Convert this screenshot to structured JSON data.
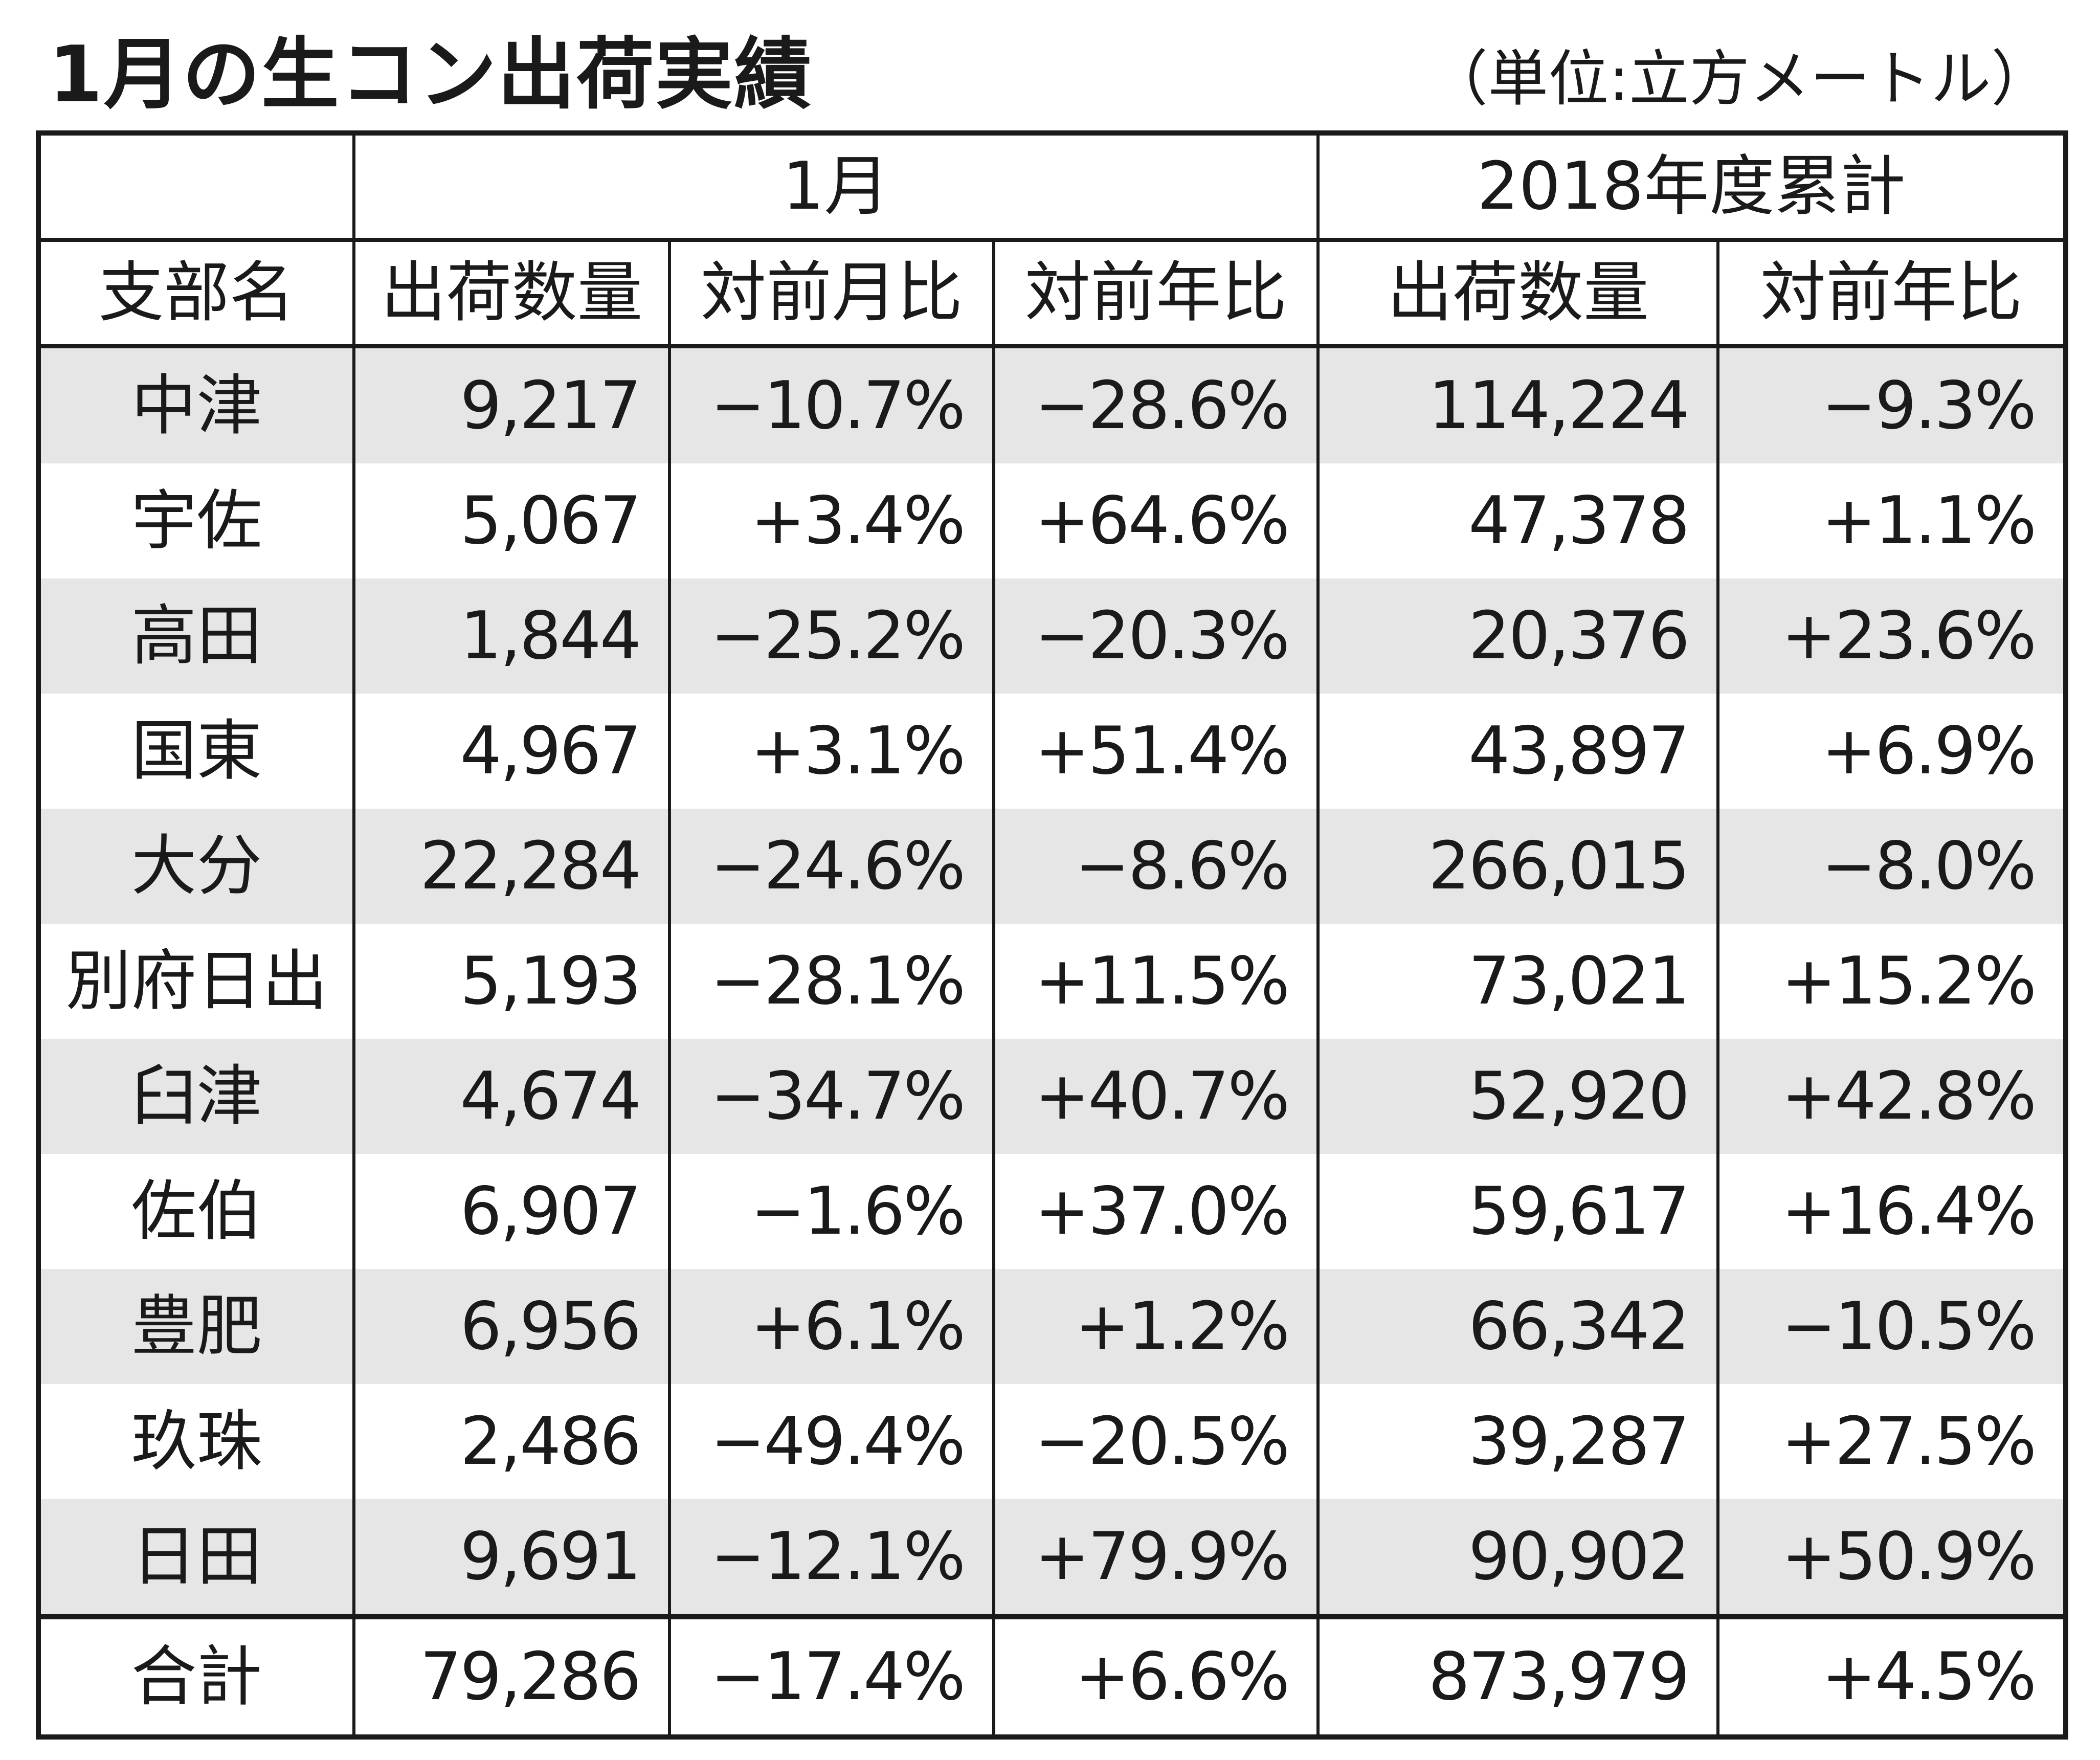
{
  "title": "1月の生コン出荷実績",
  "unit": "（単位:立方メートル）",
  "table": {
    "group_headers": [
      "",
      "1月",
      "2018年度累計"
    ],
    "column_headers": [
      "支部名",
      "出荷数量",
      "対前月比",
      "対前年比",
      "出荷数量",
      "対前年比"
    ],
    "rows": [
      [
        "中津",
        "9,217",
        "−10.7%",
        "−28.6%",
        "114,224",
        "−9.3%"
      ],
      [
        "宇佐",
        "5,067",
        "+3.4%",
        "+64.6%",
        "47,378",
        "+1.1%"
      ],
      [
        "高田",
        "1,844",
        "−25.2%",
        "−20.3%",
        "20,376",
        "+23.6%"
      ],
      [
        "国東",
        "4,967",
        "+3.1%",
        "+51.4%",
        "43,897",
        "+6.9%"
      ],
      [
        "大分",
        "22,284",
        "−24.6%",
        "−8.6%",
        "266,015",
        "−8.0%"
      ],
      [
        "別府日出",
        "5,193",
        "−28.1%",
        "+11.5%",
        "73,021",
        "+15.2%"
      ],
      [
        "臼津",
        "4,674",
        "−34.7%",
        "+40.7%",
        "52,920",
        "+42.8%"
      ],
      [
        "佐伯",
        "6,907",
        "−1.6%",
        "+37.0%",
        "59,617",
        "+16.4%"
      ],
      [
        "豊肥",
        "6,956",
        "+6.1%",
        "+1.2%",
        "66,342",
        "−10.5%"
      ],
      [
        "玖珠",
        "2,486",
        "−49.4%",
        "−20.5%",
        "39,287",
        "+27.5%"
      ],
      [
        "日田",
        "9,691",
        "−12.1%",
        "+79.9%",
        "90,902",
        "+50.9%"
      ]
    ],
    "total": [
      "合計",
      "79,286",
      "−17.4%",
      "+6.6%",
      "873,979",
      "+4.5%"
    ]
  },
  "colors": {
    "text": "#1a1a1a",
    "row_shade": "#e6e6e6",
    "background": "#ffffff"
  }
}
